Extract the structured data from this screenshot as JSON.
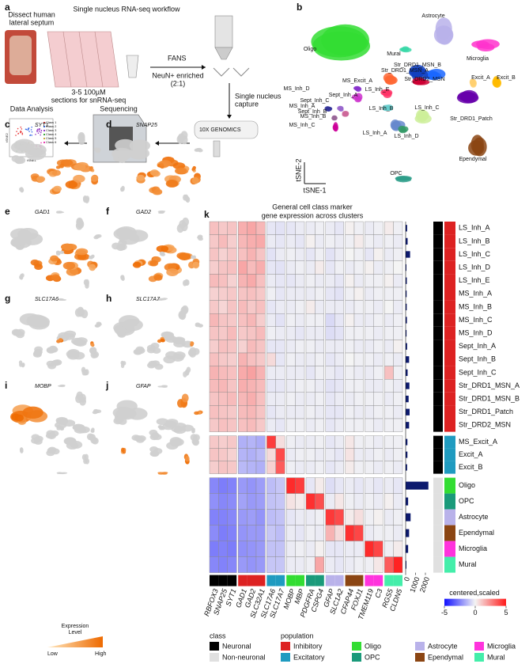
{
  "panel_labels": [
    "a",
    "b",
    "c",
    "d",
    "e",
    "f",
    "g",
    "h",
    "i",
    "j",
    "k"
  ],
  "workflow": {
    "title": "Single nucleus RNA-seq workflow",
    "dissect": [
      "Dissect human",
      "lateral septum"
    ],
    "sections": [
      "3-5 100µM",
      "sections for snRNA-seq"
    ],
    "fans": "FANS",
    "enrich": [
      "NeuN+ enriched",
      "(2:1)"
    ],
    "capture": [
      "Single nucleus",
      "capture"
    ],
    "genomics": "10X GENOMICS",
    "sequencing": "Sequencing",
    "analysis": "Data Analysis",
    "inset_classes": [
      "Class 1",
      "Class 2",
      "Class 3",
      "Class 4",
      "Class 5",
      "Class 6"
    ],
    "inset_colors": [
      "#e83e3e",
      "#3e6ee8",
      "#9b3ec8",
      "#3ea83e",
      "#c8a83e",
      "#e83eb0"
    ],
    "inset_x": "tSNE1",
    "inset_y": "tSNE2"
  },
  "tsne": {
    "axis_x": "tSNE-1",
    "axis_y": "tSNE-2",
    "clusters": [
      {
        "label": "Astrocyte",
        "color": "#b9b2ea"
      },
      {
        "label": "Oligo",
        "color": "#33dd33"
      },
      {
        "label": "Mural",
        "color": "#3ad8a8"
      },
      {
        "label": "Microglia",
        "color": "#ff33cc"
      },
      {
        "label": "Str_DRD1_MSN_B",
        "color": "#1a66ff"
      },
      {
        "label": "Str_DRD1_MSN_A",
        "color": "#1040c0"
      },
      {
        "label": "Str_DRD2_MSN",
        "color": "#cc0033"
      },
      {
        "label": "MS_Excit_A",
        "color": "#ff6633"
      },
      {
        "label": "Excit_A",
        "color": "#ffd070"
      },
      {
        "label": "Excit_B",
        "color": "#ffbb00"
      },
      {
        "label": "MS_Inh_D",
        "color": "#8833cc"
      },
      {
        "label": "LS_Inh_E",
        "color": "#ff3366"
      },
      {
        "label": "Sept_Inh_A",
        "color": "#cc33cc"
      },
      {
        "label": "Sept_Inh_C",
        "color": "#9966cc"
      },
      {
        "label": "LS_Inh_B",
        "color": "#66cccc"
      },
      {
        "label": "MS_Inh_A",
        "color": "#333399"
      },
      {
        "label": "Sept_Inh_B",
        "color": "#cc6699"
      },
      {
        "label": "LS_Inh_C",
        "color": "#cdee99"
      },
      {
        "label": "MS_Inh_B",
        "color": "#996699"
      },
      {
        "label": "MS_Inh_C",
        "color": "#cc0099"
      },
      {
        "label": "Str_DRD1_Patch",
        "color": "#6600aa"
      },
      {
        "label": "LS_Inh_A",
        "color": "#6688cc"
      },
      {
        "label": "LS_Inh_D",
        "color": "#339966"
      },
      {
        "label": "Ependymal",
        "color": "#8b4513"
      },
      {
        "label": "OPC",
        "color": "#2e9e8a"
      }
    ]
  },
  "feature_plots": {
    "genes": [
      "SYT1",
      "SNAP25",
      "GAD1",
      "GAD2",
      "SLC17A6",
      "SLC17A7",
      "MOBP",
      "GFAP"
    ],
    "legend_title": [
      "Expression",
      "Level"
    ],
    "low": "Low",
    "high": "High",
    "low_color": "#ffe8c0",
    "high_color": "#ee6a00",
    "base_color": "#cfcfcf"
  },
  "heatmap": {
    "title": [
      "General cell class marker",
      "gene expression across clusters"
    ],
    "genes": [
      "RBFOX3",
      "SNAP25",
      "SYT1",
      "GAD1",
      "GAD2",
      "SLC32A1",
      "SLC17A6",
      "SLC17A7",
      "MOBP",
      "MBP",
      "PDGFRA",
      "CSPG4",
      "GFAP",
      "SLC1A2",
      "CFAP44",
      "FOXJ1",
      "TMEM119",
      "C3",
      "RGS5",
      "CLDN5"
    ],
    "column_colors": [
      "#000000",
      "#000000",
      "#000000",
      "#dd2222",
      "#dd2222",
      "#dd2222",
      "#1f9bc0",
      "#1f9bc0",
      "#33dd33",
      "#33dd33",
      "#1a9a7a",
      "#1a9a7a",
      "#b9b2ea",
      "#b9b2ea",
      "#8b4513",
      "#8b4513",
      "#ff33dd",
      "#ff33dd",
      "#44eeaa",
      "#44eeaa"
    ],
    "rows": [
      {
        "label": "LS_Inh_A",
        "count": 150,
        "class": 0,
        "population": 0,
        "values": [
          1.2,
          1.0,
          1.1,
          1.6,
          1.8,
          1.4,
          -0.3,
          -0.4,
          -0.3,
          -0.2,
          -0.2,
          -0.1,
          -0.2,
          -0.3,
          0.1,
          -0.1,
          -0.2,
          -0.1,
          0.2,
          -0.1
        ]
      },
      {
        "label": "LS_Inh_B",
        "count": 200,
        "class": 0,
        "population": 0,
        "values": [
          1.0,
          1.3,
          0.9,
          1.4,
          1.6,
          1.7,
          -0.2,
          -0.3,
          -0.2,
          -0.3,
          0.1,
          -0.2,
          -0.1,
          -0.2,
          -0.1,
          0.2,
          -0.1,
          -0.2,
          -0.1,
          -0.2
        ]
      },
      {
        "label": "LS_Inh_C",
        "count": 450,
        "class": 0,
        "population": 0,
        "values": [
          1.1,
          0.8,
          1.0,
          1.2,
          1.5,
          1.1,
          -0.4,
          -0.2,
          -0.1,
          -0.2,
          -0.3,
          -0.1,
          -0.4,
          -0.2,
          0.0,
          -0.1,
          -0.3,
          0.1,
          -0.2,
          -0.1
        ]
      },
      {
        "label": "LS_Inh_D",
        "count": 80,
        "class": 0,
        "population": 0,
        "values": [
          0.9,
          1.1,
          1.2,
          1.8,
          1.3,
          1.6,
          -0.3,
          -0.4,
          -0.2,
          -0.1,
          -0.2,
          0.2,
          -0.3,
          -0.1,
          -0.2,
          -0.1,
          0.1,
          -0.2,
          -0.1,
          0.0
        ]
      },
      {
        "label": "LS_Inh_E",
        "count": 120,
        "class": 0,
        "population": 0,
        "values": [
          1.3,
          1.2,
          0.8,
          1.5,
          1.7,
          1.2,
          -0.2,
          -0.3,
          -0.3,
          -0.2,
          -0.1,
          -0.2,
          -0.2,
          -0.3,
          0.1,
          -0.2,
          -0.1,
          -0.1,
          0.1,
          -0.2
        ]
      },
      {
        "label": "MS_Inh_A",
        "count": 100,
        "class": 0,
        "population": 0,
        "values": [
          0.8,
          0.9,
          1.0,
          1.1,
          1.2,
          1.0,
          -0.1,
          -0.3,
          -0.2,
          -0.2,
          -0.2,
          -0.1,
          -0.3,
          -0.4,
          -0.1,
          0.1,
          -0.2,
          -0.1,
          -0.1,
          -0.1
        ]
      },
      {
        "label": "MS_Inh_B",
        "count": 110,
        "class": 0,
        "population": 0,
        "values": [
          1.0,
          0.7,
          1.1,
          1.3,
          1.0,
          1.2,
          -0.3,
          -0.2,
          -0.2,
          -0.1,
          0.2,
          -0.2,
          -0.2,
          -0.2,
          -0.2,
          -0.1,
          -0.1,
          -0.2,
          0.0,
          -0.2
        ]
      },
      {
        "label": "MS_Inh_C",
        "count": 130,
        "class": 0,
        "population": 0,
        "values": [
          1.4,
          1.1,
          1.0,
          1.2,
          1.4,
          0.9,
          -0.2,
          -0.4,
          -0.1,
          -0.2,
          -0.1,
          -0.1,
          -0.6,
          -0.3,
          0.1,
          -0.2,
          -0.2,
          -0.1,
          -0.2,
          -0.1
        ]
      },
      {
        "label": "MS_Inh_D",
        "count": 90,
        "class": 0,
        "population": 0,
        "values": [
          1.1,
          1.0,
          1.3,
          1.0,
          1.1,
          1.3,
          -0.1,
          -0.2,
          -0.2,
          -0.3,
          -0.2,
          -0.2,
          -0.5,
          -0.4,
          -0.1,
          -0.1,
          -0.1,
          -0.2,
          -0.1,
          -0.1
        ]
      },
      {
        "label": "Sept_Inh_A",
        "count": 150,
        "class": 0,
        "population": 0,
        "values": [
          0.9,
          1.2,
          1.1,
          0.8,
          1.3,
          1.1,
          -0.3,
          -0.3,
          -0.2,
          -0.1,
          -0.1,
          -0.2,
          -0.2,
          -0.2,
          -0.1,
          -0.2,
          -0.2,
          -0.1,
          -0.2,
          0.1
        ]
      },
      {
        "label": "Sept_Inh_B",
        "count": 350,
        "class": 0,
        "population": 0,
        "values": [
          1.2,
          1.0,
          0.9,
          1.5,
          1.2,
          1.0,
          0.6,
          -0.3,
          -0.1,
          -0.2,
          -0.2,
          -0.1,
          -0.3,
          -0.2,
          0.0,
          -0.1,
          -0.1,
          -0.2,
          -0.1,
          -0.2
        ]
      },
      {
        "label": "Sept_Inh_C",
        "count": 200,
        "class": 0,
        "population": 0,
        "values": [
          1.5,
          1.3,
          1.2,
          1.7,
          1.9,
          1.5,
          -0.2,
          -0.2,
          -0.2,
          -0.2,
          -0.3,
          -0.1,
          -0.2,
          -0.3,
          -0.1,
          -0.2,
          -0.2,
          -0.1,
          1.2,
          -0.1
        ]
      },
      {
        "label": "Str_DRD1_MSN_A",
        "count": 380,
        "class": 0,
        "population": 0,
        "values": [
          1.3,
          1.4,
          1.1,
          1.6,
          1.5,
          1.3,
          -0.3,
          -0.3,
          -0.2,
          -0.1,
          -0.1,
          -0.2,
          -0.4,
          -0.3,
          -0.1,
          -0.1,
          -0.2,
          -0.2,
          -0.1,
          -0.2
        ]
      },
      {
        "label": "Str_DRD1_MSN_B",
        "count": 300,
        "class": 0,
        "population": 0,
        "values": [
          1.1,
          1.2,
          1.3,
          1.4,
          1.6,
          1.2,
          -0.2,
          -0.2,
          -0.1,
          -0.2,
          -0.2,
          -0.1,
          -0.3,
          -0.2,
          -0.2,
          -0.1,
          -0.1,
          -0.1,
          -0.2,
          -0.1
        ]
      },
      {
        "label": "Str_DRD1_Patch",
        "count": 400,
        "class": 0,
        "population": 0,
        "values": [
          1.2,
          1.1,
          1.0,
          1.3,
          1.4,
          1.1,
          -0.3,
          -0.2,
          -0.2,
          -0.2,
          -0.1,
          -0.2,
          -0.3,
          -0.3,
          -0.1,
          -0.2,
          -0.2,
          -0.1,
          -0.1,
          -0.2
        ]
      },
      {
        "label": "Str_DRD2_MSN",
        "count": 350,
        "class": 0,
        "population": 0,
        "values": [
          1.0,
          1.2,
          1.1,
          1.2,
          1.3,
          1.0,
          -0.2,
          -0.3,
          -0.1,
          -0.1,
          -0.2,
          -0.1,
          -0.3,
          -0.2,
          -0.1,
          -0.1,
          -0.1,
          -0.2,
          -0.1,
          -0.1
        ]
      },
      {
        "label": "MS_Excit_A",
        "count": 180,
        "class": 0,
        "population": 1,
        "values": [
          1.0,
          0.9,
          1.0,
          -1.5,
          -1.4,
          -1.6,
          4.2,
          0.5,
          -0.1,
          -0.2,
          -0.2,
          -0.1,
          -0.3,
          -0.2,
          0.3,
          -0.1,
          -0.1,
          -0.2,
          -0.1,
          -0.1
        ]
      },
      {
        "label": "Excit_A",
        "count": 180,
        "class": 0,
        "population": 1,
        "values": [
          1.1,
          1.0,
          0.8,
          -1.4,
          -1.5,
          -1.3,
          0.6,
          3.9,
          -0.2,
          -0.1,
          -0.1,
          -0.2,
          -0.2,
          -0.3,
          0.4,
          -0.2,
          -0.2,
          -0.1,
          -0.2,
          -0.1
        ]
      },
      {
        "label": "Excit_B",
        "count": 150,
        "class": 0,
        "population": 1,
        "values": [
          0.9,
          1.1,
          1.0,
          -1.3,
          -1.4,
          -1.5,
          0.8,
          3.5,
          -0.1,
          -0.2,
          -0.2,
          -0.1,
          -0.3,
          -0.2,
          0.2,
          -0.1,
          -0.1,
          -0.2,
          -0.1,
          -0.2
        ]
      },
      {
        "label": "Oligo",
        "count": 2300,
        "class": 1,
        "population": 2,
        "values": [
          -2.4,
          -2.6,
          -2.5,
          -2.0,
          -2.1,
          -1.9,
          -1.2,
          -1.0,
          4.6,
          4.2,
          -0.3,
          0.2,
          -0.5,
          -0.3,
          -0.2,
          -0.3,
          -0.2,
          -0.3,
          -0.2,
          -0.3
        ]
      },
      {
        "label": "OPC",
        "count": 250,
        "class": 1,
        "population": 3,
        "values": [
          -2.2,
          -2.4,
          -2.3,
          -1.8,
          -2.0,
          -1.9,
          -1.1,
          -1.0,
          0.4,
          0.2,
          4.5,
          3.8,
          -0.2,
          0.3,
          -0.1,
          -0.2,
          -0.1,
          -0.2,
          0.1,
          -0.2
        ]
      },
      {
        "label": "Astrocyte",
        "count": 500,
        "class": 1,
        "population": 4,
        "values": [
          -2.5,
          -2.5,
          -2.4,
          -2.0,
          -1.9,
          -2.1,
          -1.2,
          -1.1,
          -0.3,
          -0.2,
          -0.2,
          -0.1,
          4.3,
          3.9,
          0.2,
          0.5,
          -0.1,
          0.1,
          -0.2,
          -0.1
        ]
      },
      {
        "label": "Ependymal",
        "count": 350,
        "class": 1,
        "population": 5,
        "values": [
          -2.3,
          -2.6,
          -2.5,
          -2.1,
          -2.0,
          -2.0,
          -1.0,
          -1.2,
          -0.2,
          -0.3,
          -0.1,
          -0.2,
          1.5,
          0.6,
          4.5,
          4.0,
          -0.2,
          -0.1,
          -0.1,
          -0.2
        ]
      },
      {
        "label": "Microglia",
        "count": 250,
        "class": 1,
        "population": 6,
        "values": [
          -2.6,
          -2.5,
          -2.6,
          -2.2,
          -2.1,
          -2.0,
          -1.1,
          -1.1,
          -0.2,
          -0.1,
          -0.2,
          0.1,
          -0.3,
          -0.3,
          -0.2,
          -0.2,
          4.6,
          4.0,
          -0.1,
          0.2
        ]
      },
      {
        "label": "Mural",
        "count": 80,
        "class": 1,
        "population": 7,
        "values": [
          -2.4,
          -2.5,
          -2.4,
          -2.0,
          -2.1,
          -2.0,
          -1.0,
          -1.0,
          -0.2,
          -0.2,
          -0.1,
          1.8,
          -0.2,
          -0.3,
          -0.2,
          -0.1,
          -0.1,
          0.3,
          3.5,
          4.8
        ]
      }
    ],
    "count_lim": [
      0,
      2400
    ],
    "count_ticks": [
      0,
      1000,
      2000
    ],
    "bar_color": "#0d1a6e",
    "colorbar": {
      "title": "centered,scaled",
      "lim": [
        -5,
        5
      ],
      "ticks": [
        -5,
        0,
        5
      ],
      "colors": [
        "#1010ff",
        "#f4f4f4",
        "#ff1a1a"
      ]
    }
  },
  "legend": {
    "class_title": "class",
    "classes": [
      {
        "name": "Neuronal",
        "color": "#000000"
      },
      {
        "name": "Non-neuronal",
        "color": "#e0e0e0"
      }
    ],
    "population_title": "population",
    "populations": [
      {
        "name": "Inhibitory",
        "color": "#dd2222"
      },
      {
        "name": "Excitatory",
        "color": "#1f9bc0"
      },
      {
        "name": "Oligo",
        "color": "#33dd33"
      },
      {
        "name": "OPC",
        "color": "#1a9a7a"
      },
      {
        "name": "Astrocyte",
        "color": "#b9b2ea"
      },
      {
        "name": "Ependymal",
        "color": "#8b4513"
      },
      {
        "name": "Microglia",
        "color": "#ff33dd"
      },
      {
        "name": "Mural",
        "color": "#44eeaa"
      }
    ]
  }
}
